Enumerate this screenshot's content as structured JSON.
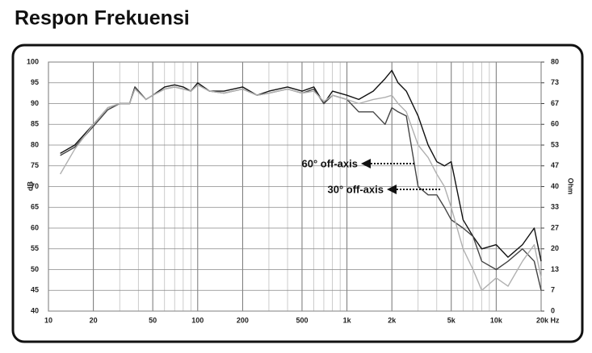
{
  "chart_data": {
    "type": "line",
    "title": "Respon Frekuensi",
    "y_label": "dB",
    "y2_label": "Ohm",
    "log_x": true,
    "grid": true,
    "xlim": [
      10,
      20000
    ],
    "ylim": [
      40,
      100
    ],
    "y2lim": [
      0,
      80
    ],
    "xticks": [
      10,
      20,
      50,
      100,
      200,
      500,
      {
        "value": 1000,
        "label": "1k"
      },
      {
        "value": 2000,
        "label": "2k"
      },
      {
        "value": 5000,
        "label": "5k"
      },
      {
        "value": 10000,
        "label": "10k"
      },
      {
        "value": 20000,
        "label": "20k Hz"
      }
    ],
    "yticks": [
      40,
      45,
      50,
      55,
      60,
      65,
      70,
      75,
      80,
      85,
      90,
      95,
      100
    ],
    "y2ticks": [
      0,
      {
        "value": 6.667,
        "label": "7"
      },
      {
        "value": 13.333,
        "label": "13"
      },
      20,
      {
        "value": 26.667,
        "label": "27"
      },
      {
        "value": 33.333,
        "label": "33"
      },
      40,
      {
        "value": 46.667,
        "label": "47"
      },
      {
        "value": 53.333,
        "label": "53"
      },
      60,
      {
        "value": 66.667,
        "label": "67"
      },
      {
        "value": 73.333,
        "label": "73"
      },
      80
    ],
    "annotations": [
      "60° off-axis",
      "30° off-axis"
    ],
    "x": [
      12,
      15,
      20,
      25,
      30,
      35,
      38,
      45,
      50,
      60,
      70,
      80,
      90,
      100,
      120,
      150,
      200,
      250,
      300,
      400,
      500,
      600,
      700,
      800,
      1000,
      1200,
      1500,
      1800,
      2000,
      2200,
      2500,
      3000,
      3500,
      4000,
      4500,
      5000,
      6000,
      7000,
      8000,
      10000,
      12000,
      15000,
      18000,
      20000
    ],
    "series": [
      {
        "color": "#111111",
        "values": [
          78,
          80,
          85,
          89,
          90,
          90,
          94,
          91,
          92,
          94,
          94.5,
          94,
          93,
          95,
          93,
          93,
          94,
          92,
          93,
          94,
          93,
          94,
          90,
          93,
          92,
          91,
          93,
          96,
          98,
          95,
          93,
          87,
          80,
          76,
          75,
          76,
          62,
          58,
          55,
          56,
          53,
          56,
          60,
          52
        ]
      },
      {
        "color": "#444444",
        "values": [
          77.5,
          79.5,
          84.5,
          88.5,
          90,
          90,
          94,
          91,
          92,
          93.5,
          94,
          93.5,
          93,
          94.5,
          93,
          92.5,
          93.5,
          92,
          92.5,
          93.5,
          92.5,
          93.5,
          90,
          92,
          91,
          88,
          88,
          85,
          89,
          88,
          87,
          70,
          68,
          68,
          65,
          62,
          60,
          58,
          52,
          50,
          52,
          55,
          52,
          45
        ]
      },
      {
        "color": "#b0b0b0",
        "values": [
          73,
          79,
          85,
          89,
          90,
          90,
          93.5,
          91,
          92,
          93.5,
          94,
          93.5,
          93,
          94.5,
          93,
          92.5,
          93.5,
          92,
          92.5,
          93.5,
          92.5,
          93,
          90.5,
          92,
          91,
          90,
          91,
          91.5,
          92,
          90,
          88,
          80,
          77,
          73,
          70,
          65,
          55,
          50,
          45,
          48,
          46,
          52,
          56,
          48
        ]
      }
    ]
  }
}
